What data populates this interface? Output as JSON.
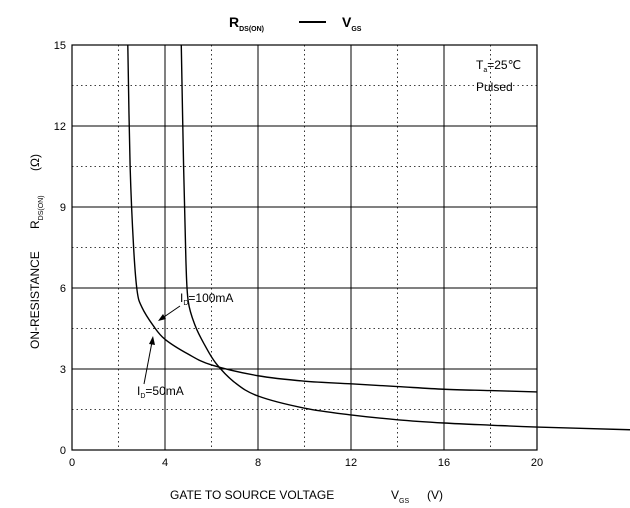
{
  "chart_data": {
    "type": "line",
    "title": {
      "left": "R",
      "left_sub": "DS(ON)",
      "right": "V",
      "right_sub": "GS"
    },
    "xlabel": "GATE TO SOURCE VOLTAGE",
    "xlabel_sym": "V",
    "xlabel_sub": "GS",
    "xlabel_unit": "(V)",
    "ylabel": "ON-RESISTANCE",
    "ylabel_sym": "R",
    "ylabel_sub": "DS(ON)",
    "ylabel_unit": "(Ω)",
    "xlim": [
      0,
      20
    ],
    "ylim": [
      0,
      15
    ],
    "xticks": [
      "0",
      "4",
      "8",
      "12",
      "16",
      "20"
    ],
    "yticks": [
      "0",
      "3",
      "6",
      "9",
      "12",
      "15"
    ],
    "grid": true,
    "conditions": {
      "ta": "T",
      "ta_sub": "a",
      "ta_val": "=25℃",
      "pulse": "Pulsed"
    },
    "series": [
      {
        "name": "ID=50mA",
        "label": {
          "sym": "I",
          "sub": "D",
          "val": "=50mA"
        },
        "x": [
          2.4,
          2.5,
          2.65,
          2.8,
          3.0,
          3.5,
          4.0,
          5.0,
          6.0,
          8.0,
          10.0,
          12.0,
          14.0,
          16.0,
          18.0,
          20.0
        ],
        "y": [
          15.0,
          10.5,
          7.5,
          5.9,
          5.3,
          4.6,
          4.1,
          3.55,
          3.15,
          2.75,
          2.55,
          2.45,
          2.35,
          2.25,
          2.2,
          2.15
        ]
      },
      {
        "name": "ID=100mA",
        "label": {
          "sym": "I",
          "sub": "D",
          "val": "=100mA"
        },
        "x": [
          4.7,
          4.8,
          4.9,
          5.0,
          5.3,
          5.7,
          6.2,
          7.0,
          8.0,
          10.0,
          12.0,
          14.0,
          16.0,
          18.0,
          20.0,
          24.0
        ],
        "y": [
          15.0,
          10.5,
          7.0,
          5.5,
          4.6,
          3.9,
          3.2,
          2.5,
          2.0,
          1.55,
          1.3,
          1.12,
          1.0,
          0.92,
          0.85,
          0.75
        ]
      }
    ]
  }
}
